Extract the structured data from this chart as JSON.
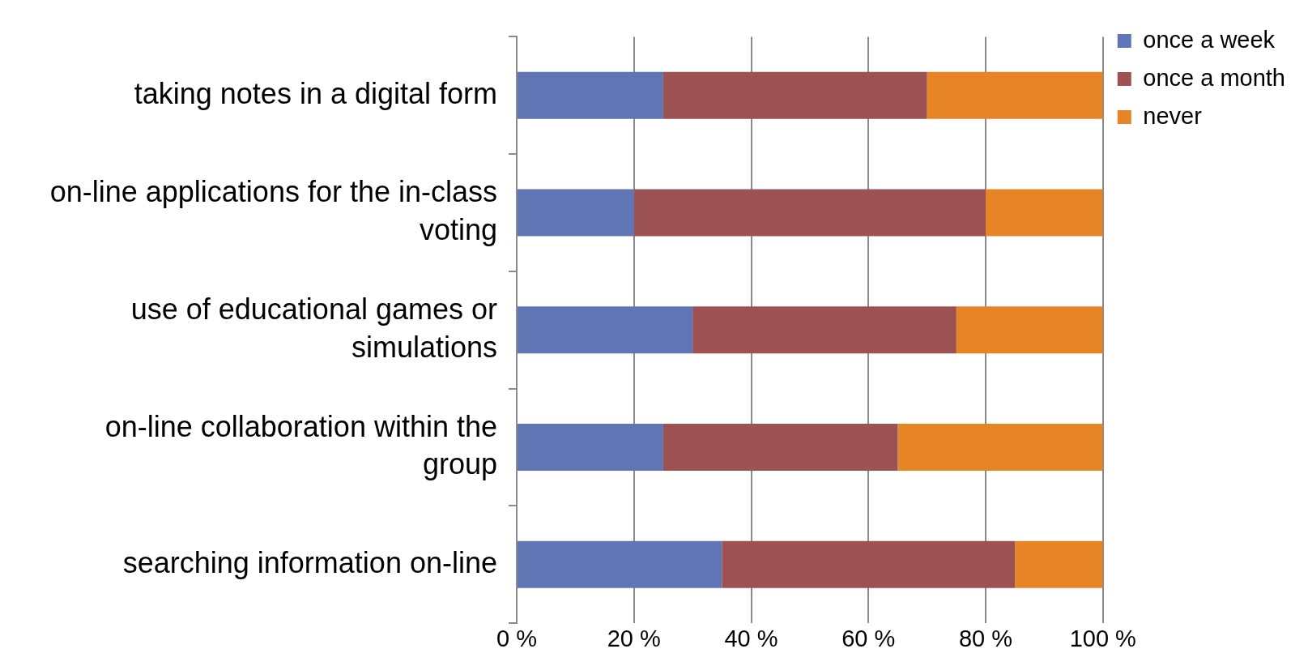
{
  "chart_data": {
    "type": "bar",
    "orientation": "horizontal",
    "stacked": true,
    "categories": [
      "taking notes in a digital form",
      "on-line applications for the in-class voting",
      "use of educational games or simulations",
      "on-line collaboration within the group",
      "searching information on-line"
    ],
    "series": [
      {
        "name": "once a week",
        "color": "#6076b4",
        "values": [
          25,
          20,
          30,
          25,
          35
        ]
      },
      {
        "name": "once a month",
        "color": "#9c5252",
        "values": [
          45,
          60,
          45,
          40,
          50
        ]
      },
      {
        "name": "never",
        "color": "#e68426",
        "values": [
          30,
          20,
          25,
          35,
          15
        ]
      }
    ],
    "xlim": [
      0,
      100
    ],
    "xticks": [
      {
        "value": 0,
        "label": "0 %"
      },
      {
        "value": 20,
        "label": "20 %"
      },
      {
        "value": 40,
        "label": "40 %"
      },
      {
        "value": 60,
        "label": "60 %"
      },
      {
        "value": 80,
        "label": "80 %"
      },
      {
        "value": 100,
        "label": "100 %"
      }
    ],
    "grid": "x",
    "legend": "top right"
  }
}
